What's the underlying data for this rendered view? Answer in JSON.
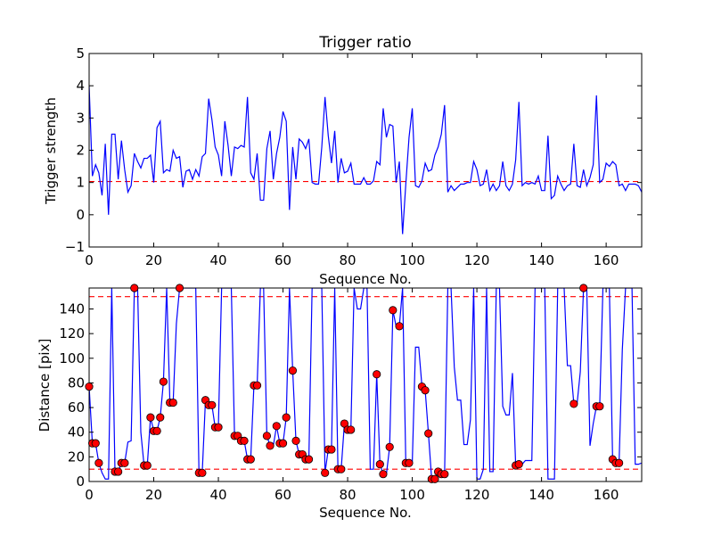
{
  "colors": {
    "line": "#0000ff",
    "threshold": "#ff0000",
    "marker_fill": "#ff0000",
    "marker_edge": "#000000",
    "axes": "#000000",
    "background": "#ffffff"
  },
  "chart_data": [
    {
      "type": "line",
      "title": "Trigger ratio",
      "xlabel": "Sequence No.",
      "ylabel": "Trigger strength",
      "xlim": [
        0,
        171
      ],
      "ylim": [
        -1,
        5
      ],
      "xticks": [
        "0",
        "20",
        "40",
        "60",
        "80",
        "100",
        "120",
        "140",
        "160"
      ],
      "yticks": [
        "−1",
        "0",
        "1",
        "2",
        "3",
        "4",
        "5"
      ],
      "grid": false,
      "threshold_lines": [
        1.03
      ],
      "series": [
        {
          "values": [
            4.0,
            1.2,
            1.55,
            1.3,
            0.6,
            2.2,
            0.0,
            2.5,
            2.5,
            1.1,
            2.3,
            1.4,
            0.7,
            0.9,
            1.9,
            1.65,
            1.45,
            1.75,
            1.75,
            1.85,
            1.0,
            2.7,
            2.9,
            1.3,
            1.4,
            1.35,
            2.0,
            1.75,
            1.8,
            0.85,
            1.35,
            1.4,
            1.1,
            1.4,
            1.2,
            1.8,
            1.9,
            3.6,
            2.95,
            2.1,
            1.85,
            1.2,
            2.9,
            2.15,
            1.2,
            2.1,
            2.05,
            2.15,
            2.1,
            3.65,
            1.3,
            1.1,
            1.9,
            0.45,
            0.45,
            2.05,
            2.6,
            1.1,
            1.9,
            2.4,
            3.2,
            2.9,
            0.15,
            2.1,
            1.1,
            2.35,
            2.25,
            2.05,
            2.35,
            1.0,
            0.95,
            0.95,
            2.1,
            3.65,
            2.45,
            1.6,
            2.6,
            1.0,
            1.75,
            1.3,
            1.35,
            1.6,
            0.95,
            0.95,
            0.95,
            1.15,
            0.95,
            0.95,
            1.05,
            1.65,
            1.55,
            3.3,
            2.4,
            2.8,
            2.75,
            1.0,
            1.65,
            -0.6,
            0.95,
            2.4,
            3.3,
            0.9,
            0.85,
            1.05,
            1.6,
            1.35,
            1.4,
            1.85,
            2.1,
            2.5,
            3.4,
            0.7,
            0.9,
            0.75,
            0.85,
            0.95,
            0.95,
            1.0,
            1.0,
            1.65,
            1.4,
            0.9,
            0.95,
            1.4,
            0.75,
            0.95,
            0.75,
            0.9,
            1.65,
            0.9,
            0.75,
            0.95,
            1.7,
            3.5,
            0.9,
            1.0,
            0.95,
            1.0,
            0.95,
            1.2,
            0.75,
            0.75,
            2.45,
            0.5,
            0.6,
            1.2,
            0.95,
            0.75,
            0.9,
            0.95,
            2.2,
            0.9,
            0.85,
            1.4,
            0.9,
            1.15,
            1.55,
            3.7,
            1.0,
            1.1,
            1.6,
            1.5,
            1.65,
            1.55,
            0.9,
            0.95,
            0.75,
            0.95,
            0.95,
            0.95,
            0.9,
            0.7
          ]
        }
      ]
    },
    {
      "type": "line",
      "title": "",
      "xlabel": "Sequence No.",
      "ylabel": "Distance [pix]",
      "xlim": [
        0,
        171
      ],
      "ylim": [
        0,
        157
      ],
      "xticks": [
        "0",
        "20",
        "40",
        "60",
        "80",
        "100",
        "120",
        "140",
        "160"
      ],
      "yticks": [
        "0",
        "20",
        "40",
        "60",
        "80",
        "100",
        "120",
        "140"
      ],
      "grid": false,
      "threshold_lines": [
        10,
        150
      ],
      "series": [
        {
          "values": [
            77,
            31,
            31,
            15,
            7,
            2,
            2,
            157,
            8,
            8,
            15,
            15,
            32,
            33,
            157,
            157,
            40,
            13,
            13,
            52,
            41,
            41,
            52,
            81,
            157,
            64,
            64,
            128,
            157,
            157,
            157,
            157,
            157,
            157,
            7,
            7,
            66,
            62,
            62,
            44,
            44,
            157,
            157,
            157,
            157,
            37,
            37,
            33,
            33,
            18,
            18,
            78,
            78,
            157,
            157,
            37,
            29,
            29,
            45,
            31,
            31,
            52,
            157,
            90,
            33,
            22,
            22,
            18,
            18,
            157,
            157,
            157,
            157,
            7,
            26,
            26,
            157,
            10,
            10,
            47,
            42,
            42,
            157,
            140,
            140,
            157,
            157,
            10,
            10,
            87,
            14,
            6,
            6,
            28,
            139,
            126,
            126,
            157,
            15,
            15,
            15,
            109,
            109,
            77,
            74,
            39,
            2,
            2,
            8,
            6,
            6,
            157,
            157,
            93,
            66,
            66,
            30,
            30,
            50,
            157,
            2,
            2,
            10,
            157,
            8,
            8,
            157,
            157,
            61,
            54,
            54,
            88,
            13,
            14,
            14,
            17,
            17,
            17,
            157,
            157,
            157,
            157,
            2,
            2,
            2,
            157,
            157,
            157,
            94,
            94,
            63,
            63,
            89,
            157,
            157,
            29,
            47,
            61,
            61,
            157,
            157,
            157,
            18,
            15,
            15,
            107,
            157,
            157,
            157,
            14,
            14,
            15
          ],
          "markers": [
            0,
            1,
            2,
            3,
            8,
            9,
            10,
            11,
            14,
            17,
            18,
            19,
            20,
            21,
            22,
            23,
            25,
            26,
            28,
            34,
            35,
            36,
            37,
            38,
            39,
            40,
            45,
            46,
            47,
            48,
            49,
            50,
            51,
            52,
            55,
            56,
            58,
            59,
            60,
            61,
            63,
            64,
            65,
            66,
            67,
            68,
            73,
            74,
            75,
            77,
            78,
            79,
            80,
            81,
            89,
            90,
            91,
            93,
            94,
            96,
            98,
            99,
            103,
            104,
            105,
            106,
            107,
            108,
            109,
            110,
            132,
            133,
            150,
            153,
            157,
            158,
            162,
            163,
            164
          ]
        }
      ]
    }
  ]
}
